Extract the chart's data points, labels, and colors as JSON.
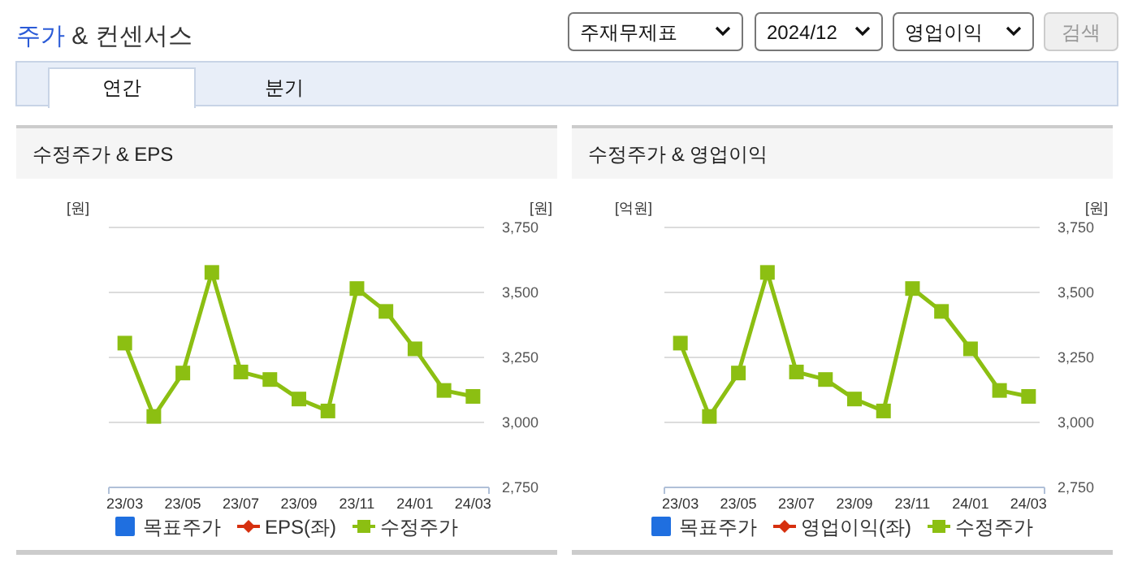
{
  "chart_data": [
    {
      "type": "other",
      "title": "주가 & 컨센서스",
      "annotations": [
        "주재무제표",
        "2024/12",
        "영업이익",
        "검색",
        "연간",
        "분기"
      ]
    },
    {
      "type": "line",
      "title": "수정주가 & EPS",
      "ylabel": "[원]",
      "y2label": "[원]",
      "categories": [
        "23/03",
        null,
        "23/05",
        null,
        "23/07",
        null,
        "23/09",
        null,
        "23/11",
        null,
        "24/01",
        null,
        "24/03"
      ],
      "series": [
        {
          "name": "목표주가",
          "type": "bar",
          "color": "#1f6fe0",
          "values": [
            null,
            null,
            null,
            null,
            null,
            null,
            null,
            null,
            null,
            null,
            null,
            null,
            null
          ]
        },
        {
          "name": "EPS(좌)",
          "type": "line",
          "marker": "diamond",
          "color": "#d6300f",
          "values": [
            null,
            null,
            null,
            null,
            null,
            null,
            null,
            null,
            null,
            null,
            null,
            null,
            null
          ]
        },
        {
          "name": "수정주가",
          "type": "line",
          "marker": "square",
          "axis": "y2",
          "color": "#8cbf12",
          "values": [
            3305,
            3023,
            3190,
            3577,
            3194,
            3165,
            3090,
            3044,
            3515,
            3427,
            3283,
            3123,
            3100
          ]
        }
      ],
      "y2lim": [
        2750,
        3750
      ],
      "y2ticks": [
        {
          "value": 2750,
          "label": "2,750"
        },
        {
          "value": 3000,
          "label": "3,000"
        },
        {
          "value": 3250,
          "label": "3,250"
        },
        {
          "value": 3500,
          "label": "3,500"
        },
        {
          "value": 3750,
          "label": "3,750"
        }
      ],
      "grid": "y",
      "legend": "bottom"
    },
    {
      "type": "line",
      "title": "수정주가 & 영업이익",
      "ylabel": "[억원]",
      "y2label": "[원]",
      "categories": [
        "23/03",
        null,
        "23/05",
        null,
        "23/07",
        null,
        "23/09",
        null,
        "23/11",
        null,
        "24/01",
        null,
        "24/03"
      ],
      "series": [
        {
          "name": "목표주가",
          "type": "bar",
          "color": "#1f6fe0",
          "values": [
            null,
            null,
            null,
            null,
            null,
            null,
            null,
            null,
            null,
            null,
            null,
            null,
            null
          ]
        },
        {
          "name": "영업이익(좌)",
          "type": "line",
          "marker": "diamond",
          "color": "#d6300f",
          "values": [
            null,
            null,
            null,
            null,
            null,
            null,
            null,
            null,
            null,
            null,
            null,
            null,
            null
          ]
        },
        {
          "name": "수정주가",
          "type": "line",
          "marker": "square",
          "axis": "y2",
          "color": "#8cbf12",
          "values": [
            3305,
            3023,
            3190,
            3577,
            3194,
            3165,
            3090,
            3044,
            3515,
            3427,
            3283,
            3123,
            3100
          ]
        }
      ],
      "y2lim": [
        2750,
        3750
      ],
      "y2ticks": [
        {
          "value": 2750,
          "label": "2,750"
        },
        {
          "value": 3000,
          "label": "3,000"
        },
        {
          "value": 3250,
          "label": "3,250"
        },
        {
          "value": 3500,
          "label": "3,500"
        },
        {
          "value": 3750,
          "label": "3,750"
        }
      ],
      "grid": "y",
      "legend": "bottom"
    }
  ]
}
